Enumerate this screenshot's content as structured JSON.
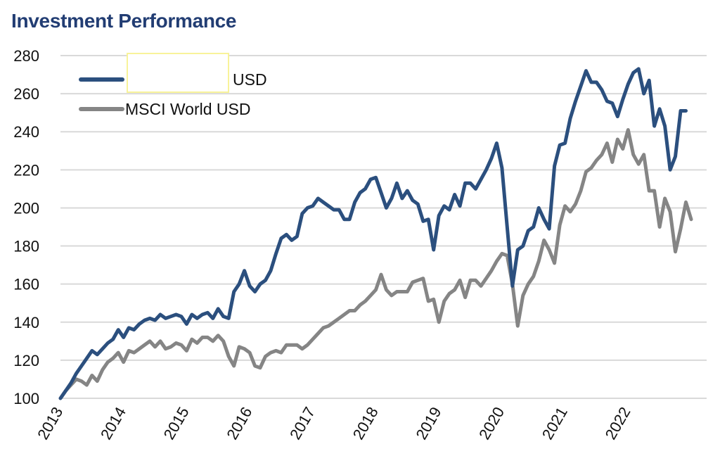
{
  "chart_data": {
    "type": "line",
    "title": "Investment Performance",
    "xlabel": "",
    "ylabel": "",
    "ylim": [
      100,
      280
    ],
    "yticks": [
      100,
      120,
      140,
      160,
      180,
      200,
      220,
      240,
      260,
      280
    ],
    "xticks": [
      "2013",
      "2014",
      "2015",
      "2016",
      "2017",
      "2018",
      "2019",
      "2020",
      "2021",
      "2022"
    ],
    "x_start": 2013.0,
    "x_step_years": 0.08333,
    "grid": true,
    "legend_position": "top-left",
    "series": [
      {
        "name": "USD",
        "name_redacted_prefix": true,
        "color": "#2b4f7e",
        "values": [
          100,
          104,
          108,
          113,
          117,
          121,
          125,
          123,
          126,
          129,
          131,
          136,
          132,
          137,
          136,
          139,
          141,
          142,
          141,
          144,
          142,
          143,
          144,
          143,
          139,
          144,
          142,
          144,
          145,
          142,
          147,
          143,
          142,
          156,
          160,
          167,
          159,
          156,
          160,
          162,
          167,
          176,
          184,
          186,
          183,
          185,
          197,
          200,
          201,
          205,
          203,
          201,
          199,
          199,
          194,
          194,
          203,
          208,
          210,
          215,
          216,
          208,
          200,
          205,
          213,
          205,
          209,
          204,
          202,
          193,
          194,
          178,
          196,
          201,
          199,
          207,
          201,
          213,
          213,
          210,
          215,
          220,
          226,
          234,
          221,
          190,
          159,
          178,
          180,
          188,
          190,
          200,
          194,
          189,
          222,
          233,
          234,
          247,
          256,
          264,
          272,
          266,
          266,
          262,
          256,
          255,
          248,
          257,
          265,
          271,
          273,
          260,
          267,
          243,
          252,
          243,
          220,
          227,
          251,
          251
        ]
      },
      {
        "name": "MSCI World USD",
        "color": "#858585",
        "values": [
          100,
          104,
          107,
          110,
          109,
          107,
          112,
          109,
          115,
          119,
          121,
          124,
          119,
          125,
          124,
          126,
          128,
          130,
          127,
          130,
          126,
          127,
          129,
          128,
          125,
          131,
          129,
          132,
          132,
          130,
          133,
          130,
          122,
          117,
          127,
          126,
          124,
          117,
          116,
          122,
          124,
          125,
          124,
          128,
          128,
          128,
          126,
          128,
          131,
          134,
          137,
          138,
          140,
          142,
          144,
          146,
          146,
          149,
          151,
          154,
          157,
          165,
          157,
          154,
          156,
          156,
          156,
          161,
          162,
          163,
          151,
          152,
          140,
          151,
          155,
          157,
          162,
          153,
          162,
          162,
          159,
          163,
          167,
          172,
          176,
          175,
          160,
          138,
          154,
          160,
          164,
          172,
          183,
          178,
          171,
          191,
          201,
          198,
          202,
          209,
          219,
          221,
          225,
          228,
          234,
          224,
          236,
          231,
          241,
          228,
          223,
          228,
          209,
          209,
          190,
          205,
          198,
          177,
          189,
          203,
          194
        ]
      }
    ]
  },
  "legend": {
    "items": [
      {
        "label": "USD"
      },
      {
        "label": "MSCI World USD"
      }
    ]
  }
}
